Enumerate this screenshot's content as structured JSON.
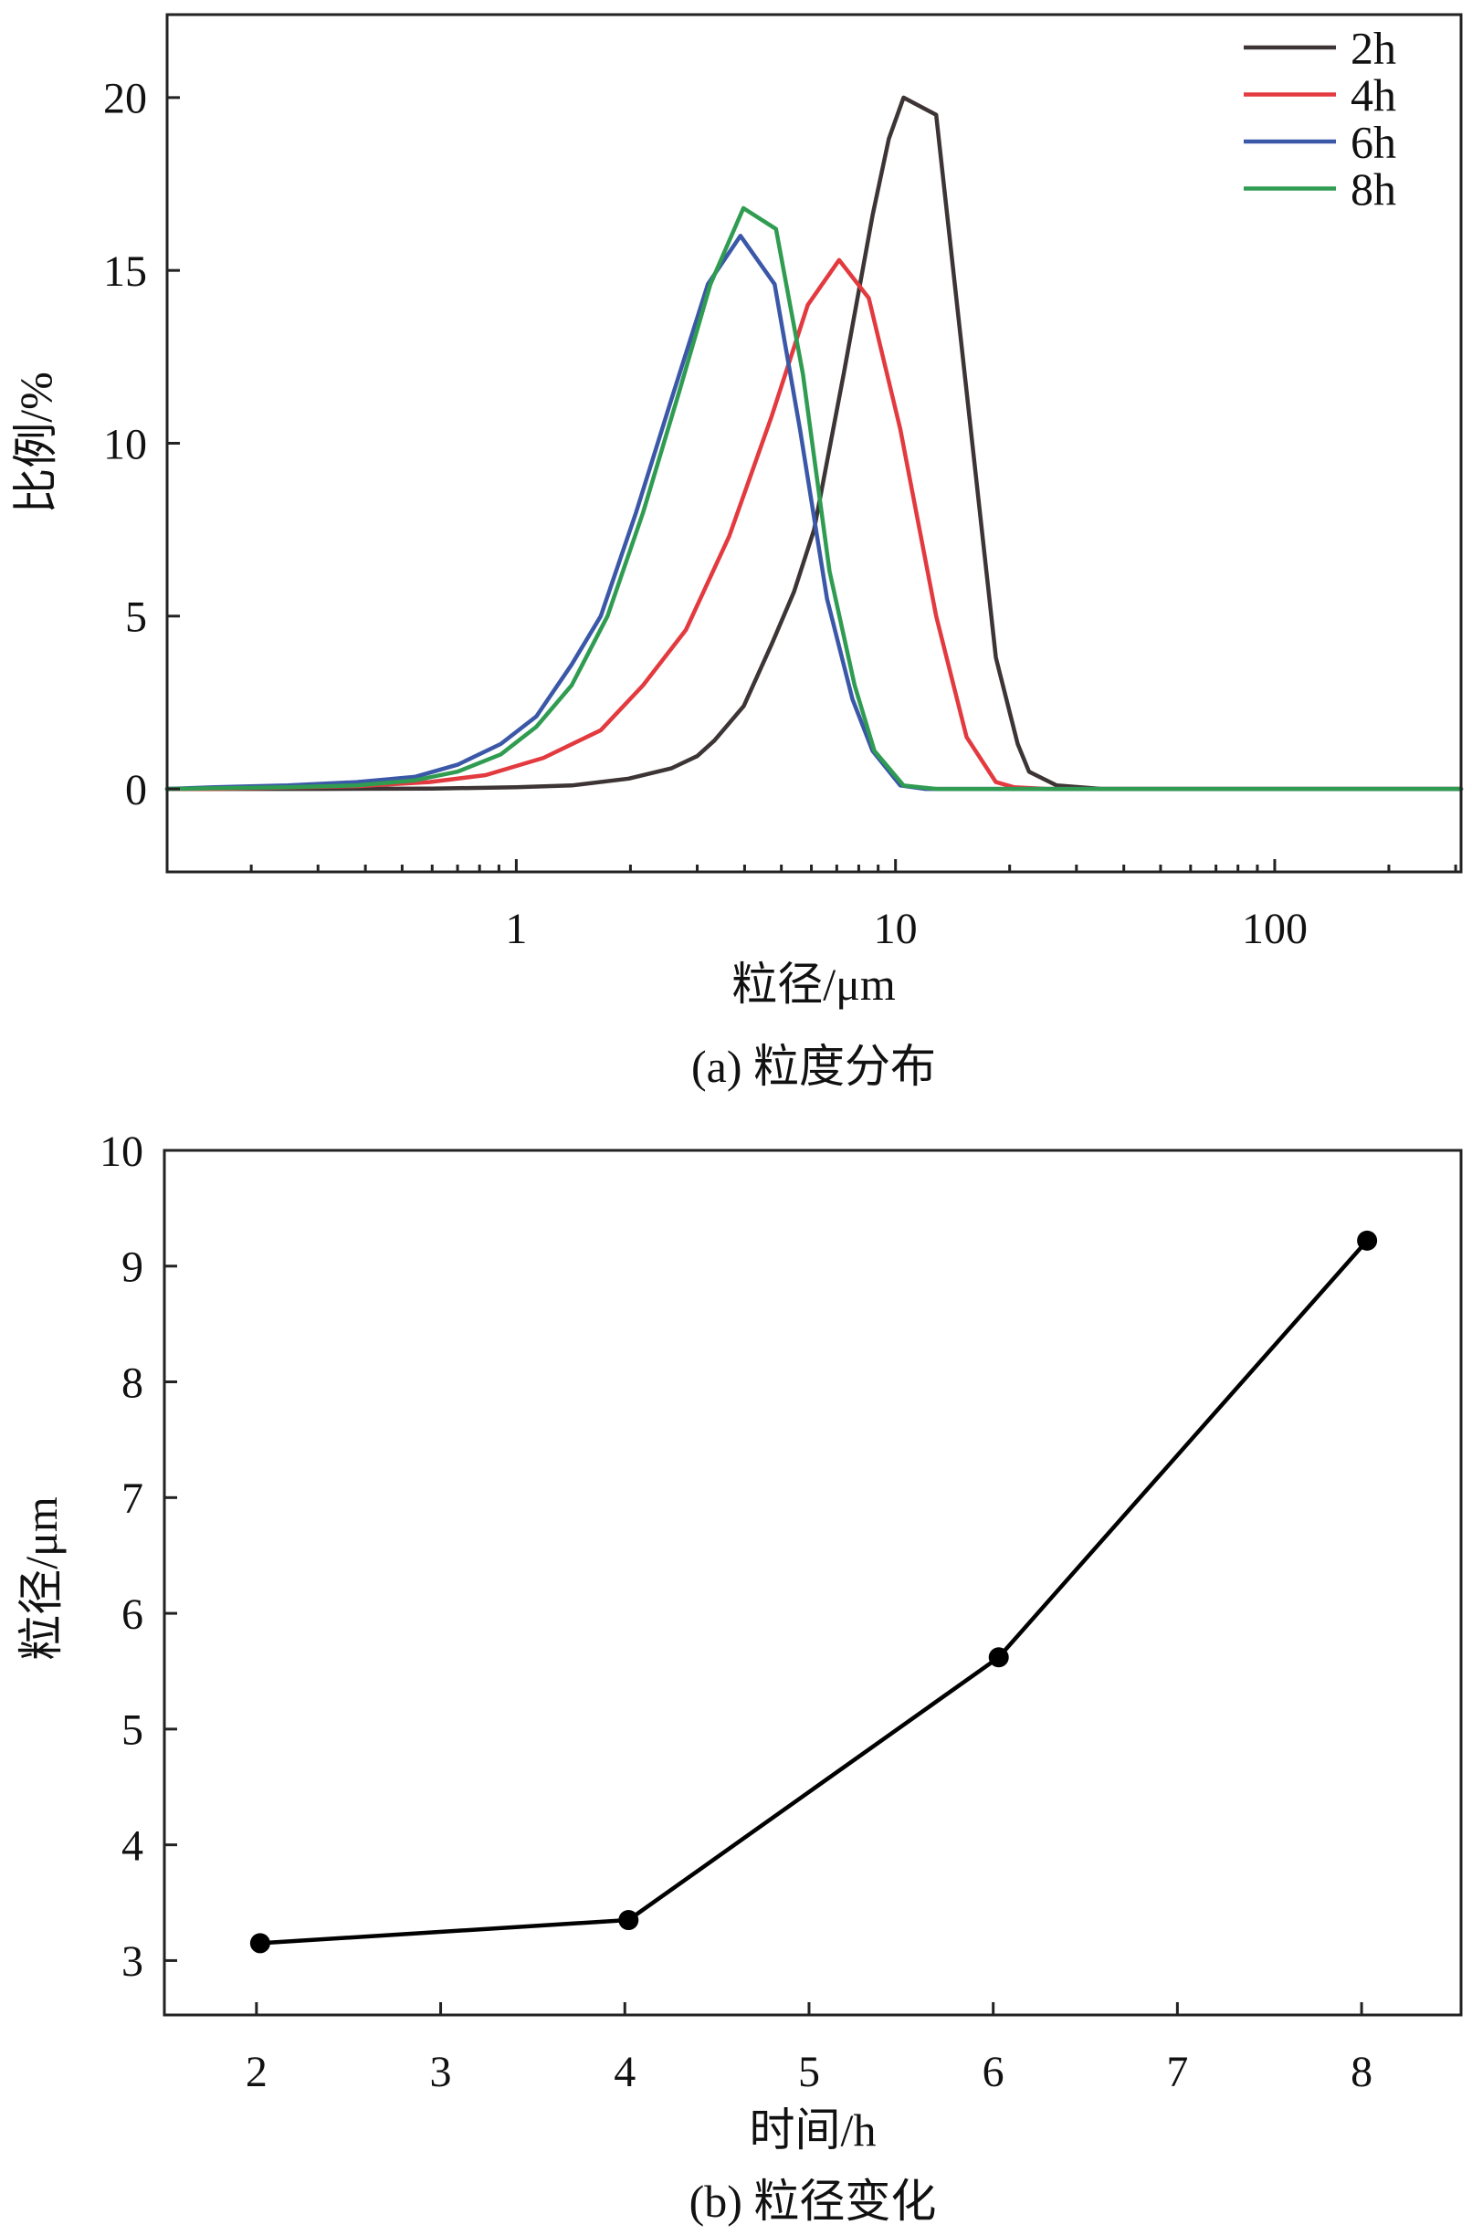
{
  "chart_data": [
    {
      "type": "line",
      "title": "(a) 粒度分布",
      "xlabel": "粒径/μm",
      "ylabel": "比例/%",
      "x_log_scale": true,
      "xlim": [
        0.12,
        310
      ],
      "ylim": [
        -2.4,
        22.4
      ],
      "xticks": [
        1,
        10,
        100
      ],
      "xtick_labels": [
        "1",
        "10",
        "100"
      ],
      "yticks": [
        0,
        5,
        10,
        15,
        20
      ],
      "ytick_labels": [
        "0",
        "5",
        "10",
        "15",
        "20"
      ],
      "grid": false,
      "legend": "top-right",
      "series": [
        {
          "name": "2h",
          "color": "#3d3535",
          "x": [
            0.12,
            0.3,
            0.6,
            1.0,
            1.4,
            1.98,
            2.57,
            3.0,
            3.33,
            3.98,
            4.72,
            5.4,
            6.1,
            7.3,
            8.7,
            9.6,
            10.5,
            12.8,
            18.4,
            21,
            22.5,
            26.6,
            35,
            60,
            150,
            310
          ],
          "y": [
            0,
            0,
            0.01,
            0.05,
            0.1,
            0.3,
            0.6,
            0.95,
            1.4,
            2.4,
            4.2,
            5.7,
            7.5,
            12,
            16.6,
            18.8,
            20,
            19.5,
            3.8,
            1.3,
            0.5,
            0.1,
            0,
            0,
            0,
            0
          ]
        },
        {
          "name": "4h",
          "color": "#e23a3f",
          "x": [
            0.12,
            0.16,
            0.38,
            0.59,
            0.83,
            1.18,
            1.67,
            2.16,
            2.8,
            3.64,
            4.72,
            5.87,
            7.1,
            8.5,
            10.3,
            12.8,
            15.4,
            18.4,
            20.5,
            25,
            60,
            310
          ],
          "y": [
            0,
            0,
            0.08,
            0.2,
            0.4,
            0.9,
            1.7,
            3.0,
            4.6,
            7.3,
            10.8,
            14,
            15.3,
            14.2,
            10.4,
            5.0,
            1.5,
            0.2,
            0.05,
            0,
            0,
            0
          ]
        },
        {
          "name": "6h",
          "color": "#3b58a8",
          "x": [
            0.12,
            0.16,
            0.25,
            0.38,
            0.54,
            0.7,
            0.91,
            1.13,
            1.4,
            1.67,
            2.07,
            2.57,
            3.2,
            3.9,
            4.8,
            5.6,
            6.6,
            7.7,
            8.7,
            10.3,
            12,
            60,
            310
          ],
          "y": [
            0,
            0.05,
            0.1,
            0.2,
            0.35,
            0.7,
            1.3,
            2.1,
            3.6,
            5.0,
            8.0,
            11.3,
            14.6,
            16.0,
            14.6,
            10.4,
            5.5,
            2.6,
            1.1,
            0.1,
            0,
            0,
            0
          ]
        },
        {
          "name": "8h",
          "color": "#2f9c51",
          "x": [
            0.12,
            0.25,
            0.38,
            0.54,
            0.7,
            0.91,
            1.13,
            1.4,
            1.74,
            2.16,
            2.69,
            3.25,
            3.97,
            4.84,
            5.7,
            6.7,
            7.8,
            8.8,
            10.5,
            12.8,
            60,
            310
          ],
          "y": [
            0,
            0.05,
            0.1,
            0.25,
            0.5,
            1.0,
            1.8,
            3.0,
            5.0,
            8.0,
            11.5,
            14.6,
            16.8,
            16.2,
            12,
            6.3,
            3.0,
            1.1,
            0.1,
            0,
            0,
            0
          ]
        }
      ]
    },
    {
      "type": "line",
      "title": "(b) 粒径变化",
      "xlabel": "时间/h",
      "ylabel": "粒径/μm",
      "x_log_scale": false,
      "xlim": [
        1.5,
        8.54
      ],
      "ylim": [
        2.53,
        10
      ],
      "xticks": [
        2,
        3,
        4,
        5,
        6,
        7,
        8
      ],
      "xtick_labels": [
        "2",
        "3",
        "4",
        "5",
        "6",
        "7",
        "8"
      ],
      "yticks": [
        3,
        4,
        5,
        6,
        7,
        8,
        9,
        10
      ],
      "ytick_labels": [
        "3",
        "4",
        "5",
        "6",
        "7",
        "8",
        "9",
        "10"
      ],
      "grid": false,
      "series": [
        {
          "color": "#000000",
          "markers": true,
          "x": [
            2.02,
            4.02,
            6.03,
            8.03
          ],
          "y": [
            3.15,
            3.35,
            5.62,
            9.22
          ]
        }
      ]
    }
  ]
}
